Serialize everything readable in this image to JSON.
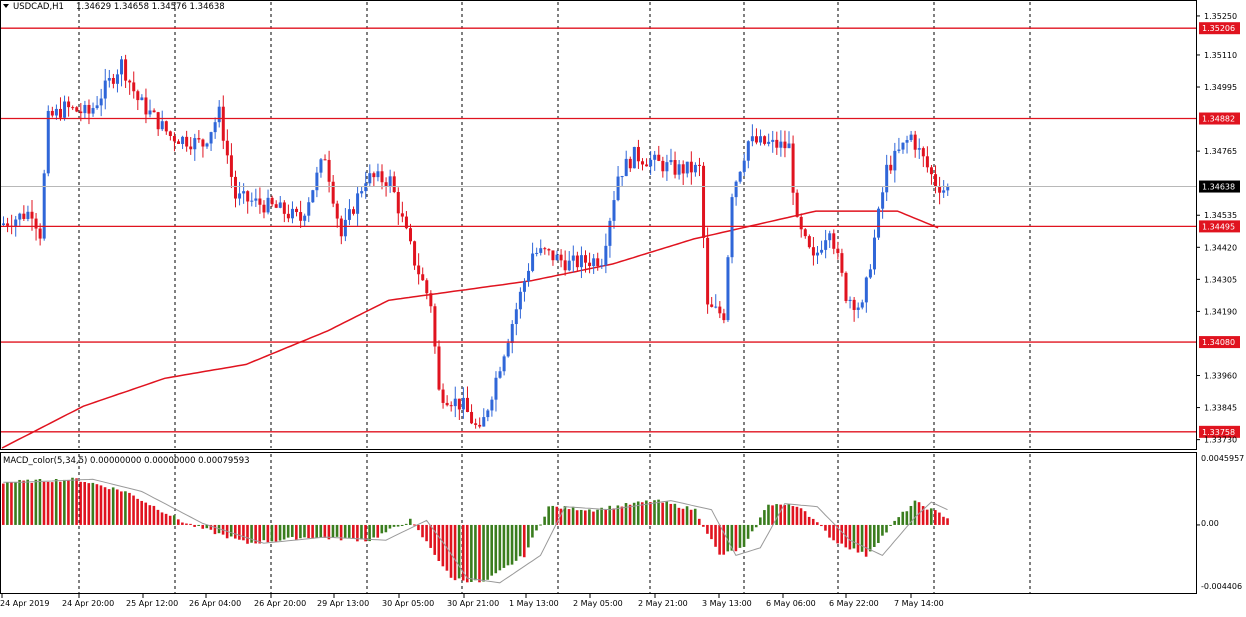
{
  "header": {
    "symbol_label": "USDCAD,H1",
    "ohlc": "1.34629 1.34658 1.34576 1.34638"
  },
  "indicator": {
    "label": "MACD_color(5,34,5) 0.00000000 0.00000000 0.00079593",
    "scale_top": "0.0045957",
    "scale_zero": "0.00",
    "scale_bottom": "-0.004406"
  },
  "price_axis": {
    "ticks": [
      "1.35250",
      "1.35110",
      "1.34995",
      "1.34765",
      "1.34535",
      "1.34420",
      "1.34305",
      "1.34190",
      "1.33960",
      "1.33845",
      "1.33730"
    ],
    "current_price": "1.34638"
  },
  "levels": [
    {
      "price": "1.35206",
      "color": "#e0131f"
    },
    {
      "price": "1.34882",
      "color": "#e0131f"
    },
    {
      "price": "1.34495",
      "color": "#e0131f"
    },
    {
      "price": "1.34080",
      "color": "#e0131f"
    },
    {
      "price": "1.33758",
      "color": "#e0131f"
    }
  ],
  "time_axis": [
    "24 Apr 2019",
    "24 Apr 20:00",
    "25 Apr 12:00",
    "26 Apr 04:00",
    "26 Apr 20:00",
    "29 Apr 13:00",
    "30 Apr 05:00",
    "30 Apr 21:00",
    "1 May 13:00",
    "2 May 05:00",
    "2 May 21:00",
    "3 May 13:00",
    "6 May 06:00",
    "6 May 22:00",
    "7 May 14:00"
  ],
  "colors": {
    "bull": "#2f66d8",
    "bear": "#e0131f",
    "ma": "#e0131f",
    "macd_pos": "#e0131f",
    "macd_neg": "#3a7d1e",
    "grid": "#000000"
  },
  "chart_data": {
    "type": "candlestick",
    "symbol": "USDCAD",
    "timeframe": "H1",
    "moving_average": [
      [
        0,
        1.337
      ],
      [
        20,
        1.3385
      ],
      [
        40,
        1.3395
      ],
      [
        60,
        1.34
      ],
      [
        80,
        1.3412
      ],
      [
        95,
        1.3423
      ],
      [
        110,
        1.3426
      ],
      [
        130,
        1.343
      ],
      [
        150,
        1.3436
      ],
      [
        170,
        1.3445
      ],
      [
        185,
        1.345
      ],
      [
        200,
        1.3455
      ],
      [
        220,
        1.3455
      ],
      [
        230,
        1.3449
      ]
    ],
    "anchors": [
      [
        0,
        1.345
      ],
      [
        8,
        1.3455
      ],
      [
        10,
        1.3447
      ],
      [
        12,
        1.3488
      ],
      [
        16,
        1.3492
      ],
      [
        22,
        1.349
      ],
      [
        30,
        1.3508
      ],
      [
        34,
        1.3495
      ],
      [
        42,
        1.3482
      ],
      [
        50,
        1.3479
      ],
      [
        54,
        1.349
      ],
      [
        58,
        1.346
      ],
      [
        68,
        1.3456
      ],
      [
        74,
        1.3452
      ],
      [
        80,
        1.3475
      ],
      [
        84,
        1.3446
      ],
      [
        90,
        1.3467
      ],
      [
        96,
        1.3466
      ],
      [
        102,
        1.3437
      ],
      [
        106,
        1.3422
      ],
      [
        108,
        1.339
      ],
      [
        114,
        1.3385
      ],
      [
        118,
        1.3375
      ],
      [
        122,
        1.3395
      ],
      [
        128,
        1.3425
      ],
      [
        131,
        1.344
      ],
      [
        134,
        1.344
      ],
      [
        140,
        1.3436
      ],
      [
        148,
        1.3438
      ],
      [
        152,
        1.3468
      ],
      [
        156,
        1.3475
      ],
      [
        166,
        1.347
      ],
      [
        172,
        1.347
      ],
      [
        174,
        1.342
      ],
      [
        178,
        1.3418
      ],
      [
        180,
        1.3462
      ],
      [
        184,
        1.348
      ],
      [
        194,
        1.3478
      ],
      [
        196,
        1.345
      ],
      [
        200,
        1.3437
      ],
      [
        204,
        1.345
      ],
      [
        208,
        1.3425
      ],
      [
        212,
        1.342
      ],
      [
        218,
        1.347
      ],
      [
        224,
        1.3482
      ],
      [
        230,
        1.3465
      ],
      [
        232,
        1.3463
      ]
    ],
    "candle_count": 233,
    "macd": {
      "name": "MACD_color(5,34,5)",
      "values": [
        "0.00000000",
        "0.00000000",
        "0.00079593"
      ],
      "anchors": [
        [
          0,
          0.0028
        ],
        [
          18,
          0.003
        ],
        [
          30,
          0.0022
        ],
        [
          45,
          0.0001
        ],
        [
          60,
          -0.0012
        ],
        [
          75,
          -0.0008
        ],
        [
          90,
          -0.001
        ],
        [
          100,
          0.0003
        ],
        [
          105,
          -0.0015
        ],
        [
          110,
          -0.0035
        ],
        [
          118,
          -0.0038
        ],
        [
          128,
          -0.002
        ],
        [
          134,
          0.0012
        ],
        [
          145,
          0.001
        ],
        [
          150,
          0.0012
        ],
        [
          160,
          0.0016
        ],
        [
          170,
          0.001
        ],
        [
          176,
          -0.002
        ],
        [
          182,
          -0.0015
        ],
        [
          188,
          0.0014
        ],
        [
          196,
          0.0012
        ],
        [
          204,
          -0.001
        ],
        [
          212,
          -0.002
        ],
        [
          220,
          0.0005
        ],
        [
          224,
          0.0015
        ],
        [
          232,
          0.0005
        ]
      ]
    }
  }
}
